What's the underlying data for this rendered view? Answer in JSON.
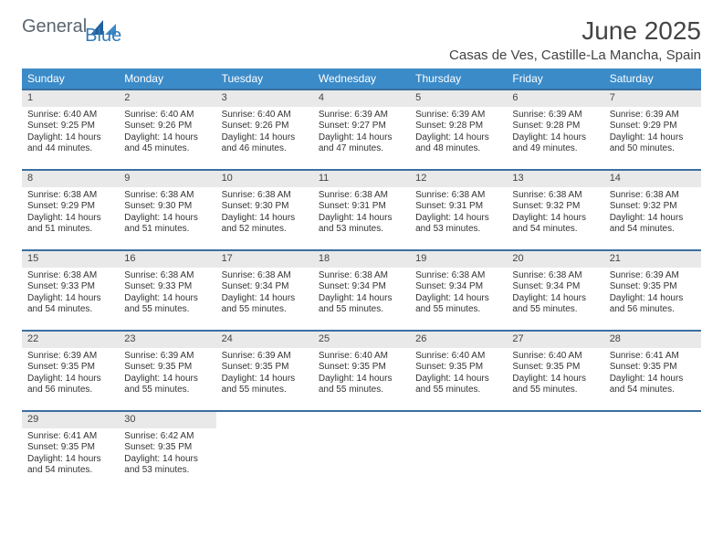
{
  "brand": {
    "part1": "General",
    "part2": "Blue"
  },
  "title": "June 2025",
  "location": "Casas de Ves, Castille-La Mancha, Spain",
  "colors": {
    "header_bg": "#3b8bc9",
    "row_border": "#3b6fa0",
    "daynum_bg": "#e9e9e9",
    "logo_gray": "#5c6670",
    "logo_blue": "#337ab7"
  },
  "weekdays": [
    "Sunday",
    "Monday",
    "Tuesday",
    "Wednesday",
    "Thursday",
    "Friday",
    "Saturday"
  ],
  "weeks": [
    [
      {
        "n": "1",
        "sr": "6:40 AM",
        "ss": "9:25 PM",
        "dl": "14 hours and 44 minutes."
      },
      {
        "n": "2",
        "sr": "6:40 AM",
        "ss": "9:26 PM",
        "dl": "14 hours and 45 minutes."
      },
      {
        "n": "3",
        "sr": "6:40 AM",
        "ss": "9:26 PM",
        "dl": "14 hours and 46 minutes."
      },
      {
        "n": "4",
        "sr": "6:39 AM",
        "ss": "9:27 PM",
        "dl": "14 hours and 47 minutes."
      },
      {
        "n": "5",
        "sr": "6:39 AM",
        "ss": "9:28 PM",
        "dl": "14 hours and 48 minutes."
      },
      {
        "n": "6",
        "sr": "6:39 AM",
        "ss": "9:28 PM",
        "dl": "14 hours and 49 minutes."
      },
      {
        "n": "7",
        "sr": "6:39 AM",
        "ss": "9:29 PM",
        "dl": "14 hours and 50 minutes."
      }
    ],
    [
      {
        "n": "8",
        "sr": "6:38 AM",
        "ss": "9:29 PM",
        "dl": "14 hours and 51 minutes."
      },
      {
        "n": "9",
        "sr": "6:38 AM",
        "ss": "9:30 PM",
        "dl": "14 hours and 51 minutes."
      },
      {
        "n": "10",
        "sr": "6:38 AM",
        "ss": "9:30 PM",
        "dl": "14 hours and 52 minutes."
      },
      {
        "n": "11",
        "sr": "6:38 AM",
        "ss": "9:31 PM",
        "dl": "14 hours and 53 minutes."
      },
      {
        "n": "12",
        "sr": "6:38 AM",
        "ss": "9:31 PM",
        "dl": "14 hours and 53 minutes."
      },
      {
        "n": "13",
        "sr": "6:38 AM",
        "ss": "9:32 PM",
        "dl": "14 hours and 54 minutes."
      },
      {
        "n": "14",
        "sr": "6:38 AM",
        "ss": "9:32 PM",
        "dl": "14 hours and 54 minutes."
      }
    ],
    [
      {
        "n": "15",
        "sr": "6:38 AM",
        "ss": "9:33 PM",
        "dl": "14 hours and 54 minutes."
      },
      {
        "n": "16",
        "sr": "6:38 AM",
        "ss": "9:33 PM",
        "dl": "14 hours and 55 minutes."
      },
      {
        "n": "17",
        "sr": "6:38 AM",
        "ss": "9:34 PM",
        "dl": "14 hours and 55 minutes."
      },
      {
        "n": "18",
        "sr": "6:38 AM",
        "ss": "9:34 PM",
        "dl": "14 hours and 55 minutes."
      },
      {
        "n": "19",
        "sr": "6:38 AM",
        "ss": "9:34 PM",
        "dl": "14 hours and 55 minutes."
      },
      {
        "n": "20",
        "sr": "6:38 AM",
        "ss": "9:34 PM",
        "dl": "14 hours and 55 minutes."
      },
      {
        "n": "21",
        "sr": "6:39 AM",
        "ss": "9:35 PM",
        "dl": "14 hours and 56 minutes."
      }
    ],
    [
      {
        "n": "22",
        "sr": "6:39 AM",
        "ss": "9:35 PM",
        "dl": "14 hours and 56 minutes."
      },
      {
        "n": "23",
        "sr": "6:39 AM",
        "ss": "9:35 PM",
        "dl": "14 hours and 55 minutes."
      },
      {
        "n": "24",
        "sr": "6:39 AM",
        "ss": "9:35 PM",
        "dl": "14 hours and 55 minutes."
      },
      {
        "n": "25",
        "sr": "6:40 AM",
        "ss": "9:35 PM",
        "dl": "14 hours and 55 minutes."
      },
      {
        "n": "26",
        "sr": "6:40 AM",
        "ss": "9:35 PM",
        "dl": "14 hours and 55 minutes."
      },
      {
        "n": "27",
        "sr": "6:40 AM",
        "ss": "9:35 PM",
        "dl": "14 hours and 55 minutes."
      },
      {
        "n": "28",
        "sr": "6:41 AM",
        "ss": "9:35 PM",
        "dl": "14 hours and 54 minutes."
      }
    ],
    [
      {
        "n": "29",
        "sr": "6:41 AM",
        "ss": "9:35 PM",
        "dl": "14 hours and 54 minutes."
      },
      {
        "n": "30",
        "sr": "6:42 AM",
        "ss": "9:35 PM",
        "dl": "14 hours and 53 minutes."
      },
      null,
      null,
      null,
      null,
      null
    ]
  ],
  "labels": {
    "sunrise": "Sunrise:",
    "sunset": "Sunset:",
    "daylight": "Daylight:"
  }
}
